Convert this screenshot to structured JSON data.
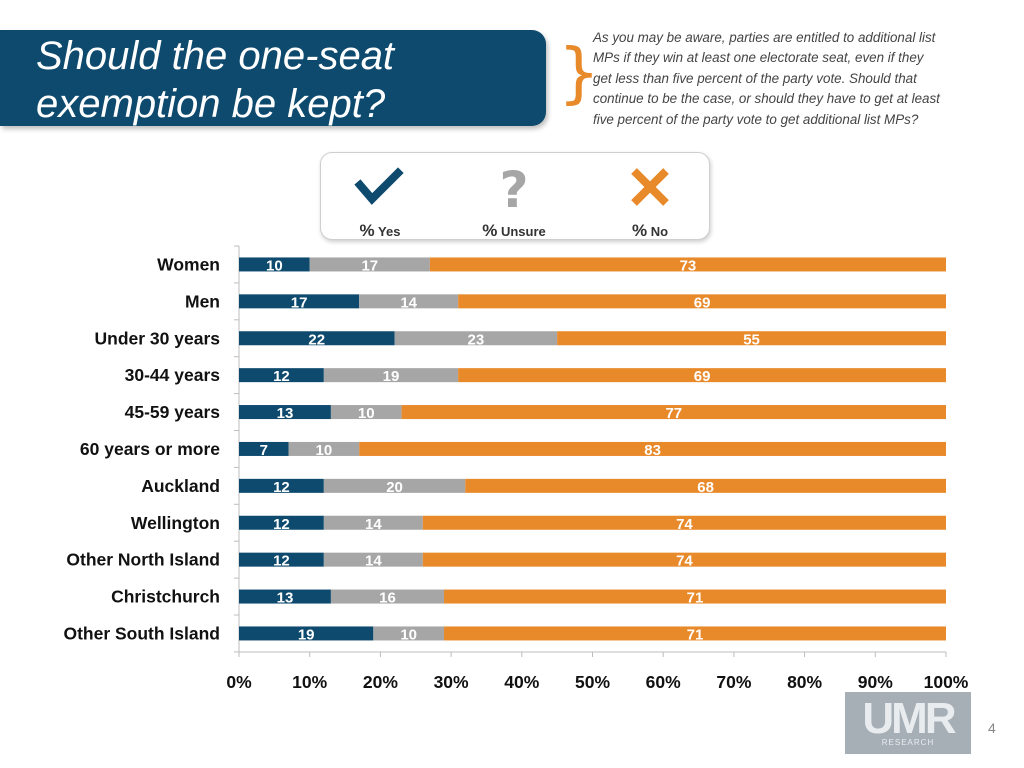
{
  "header": {
    "title_line1": "Should the one-seat",
    "title_line2": "exemption be kept?",
    "brace": "}",
    "note_lines": [
      "As you may be aware, parties are entitled to additional list",
      "MPs if they win at least one electorate seat, even if they",
      "get less than five percent of the party vote. Should that",
      "continue to be the case, or should they have to get at least",
      "five percent of the party vote to get additional list MPs?"
    ]
  },
  "legend": [
    {
      "symbol": "check-icon",
      "pct": "%",
      "label": "Yes",
      "color": "#0e4a6e"
    },
    {
      "symbol": "question-icon",
      "pct": "%",
      "label": "Unsure",
      "color": "#a6a6a6"
    },
    {
      "symbol": "cross-icon",
      "pct": "%",
      "label": "No",
      "color": "#e8892a"
    }
  ],
  "chart_data": {
    "type": "bar",
    "orientation": "horizontal",
    "stacked": true,
    "categories": [
      "Women",
      "Men",
      "Under 30 years",
      "30-44 years",
      "45-59 years",
      "60 years or more",
      "Auckland",
      "Wellington",
      "Other North Island",
      "Christchurch",
      "Other South Island"
    ],
    "series": [
      {
        "name": "Yes",
        "color": "#0e4a6e",
        "values": [
          10,
          17,
          22,
          12,
          13,
          7,
          12,
          12,
          12,
          13,
          19
        ]
      },
      {
        "name": "Unsure",
        "color": "#a6a6a6",
        "values": [
          17,
          14,
          23,
          19,
          10,
          10,
          20,
          14,
          14,
          16,
          10
        ]
      },
      {
        "name": "No",
        "color": "#e8892a",
        "values": [
          73,
          69,
          55,
          69,
          77,
          83,
          68,
          74,
          74,
          71,
          71
        ]
      }
    ],
    "xlim": [
      0,
      100
    ],
    "xticks": [
      "0%",
      "10%",
      "20%",
      "30%",
      "40%",
      "50%",
      "60%",
      "70%",
      "80%",
      "90%",
      "100%"
    ],
    "xlabel": "",
    "ylabel": ""
  },
  "footer": {
    "logo_text": "UMR",
    "logo_sub": "RESEARCH",
    "page_number": "4"
  }
}
